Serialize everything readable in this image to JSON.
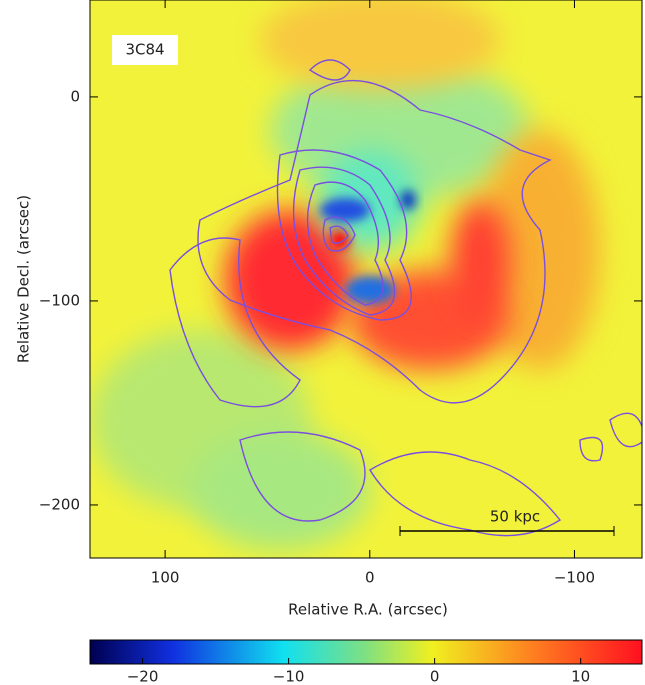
{
  "chart_data": {
    "type": "heatmap",
    "annotation": "3C84",
    "scale_bar": "50 kpc",
    "xlabel": "Relative R.A. (arcsec)",
    "ylabel": "Relative Decl. (arcsec)",
    "xlim": [
      136.7,
      -133
    ],
    "ylim": [
      47.5,
      -226
    ],
    "xticks": [
      100,
      0,
      {
        "value": -100,
        "label": "−100"
      }
    ],
    "yticks": [
      0,
      {
        "value": -100,
        "label": "−100"
      },
      {
        "value": -200,
        "label": "−200"
      }
    ],
    "colorbar": {
      "lim": [
        -23.6,
        14.2
      ],
      "ticks": [
        {
          "value": -20,
          "label": "−20"
        },
        {
          "value": -10,
          "label": "−10"
        },
        0,
        10
      ]
    }
  }
}
